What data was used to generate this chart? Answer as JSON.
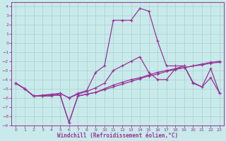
{
  "xlabel": "Windchill (Refroidissement éolien,°C)",
  "background_color": "#c8eaea",
  "grid_color": "#aacfcf",
  "line_color": "#993399",
  "spine_color": "#993399",
  "xlim": [
    -0.5,
    23.5
  ],
  "ylim": [
    -9.0,
    4.5
  ],
  "xticks": [
    0,
    1,
    2,
    3,
    4,
    5,
    6,
    7,
    8,
    9,
    10,
    11,
    12,
    13,
    14,
    15,
    16,
    17,
    18,
    19,
    20,
    21,
    22,
    23
  ],
  "yticks": [
    4,
    3,
    2,
    1,
    0,
    -1,
    -2,
    -3,
    -4,
    -5,
    -6,
    -7,
    -8,
    -9
  ],
  "s1_x": [
    0,
    1,
    2,
    3,
    4,
    5,
    6,
    7,
    8,
    9,
    10,
    11,
    12,
    13,
    14,
    15,
    16,
    17,
    18,
    19,
    20,
    21,
    22,
    23
  ],
  "s1_y": [
    -4.4,
    -5.0,
    -5.8,
    -5.8,
    -5.7,
    -5.7,
    -8.7,
    -5.8,
    -5.6,
    -5.4,
    -5.1,
    -4.8,
    -4.5,
    -4.2,
    -3.9,
    -3.6,
    -3.4,
    -3.1,
    -2.9,
    -2.7,
    -2.5,
    -2.4,
    -2.2,
    -2.1
  ],
  "s2_x": [
    0,
    1,
    2,
    3,
    4,
    5,
    6,
    7,
    8,
    9,
    10,
    11,
    12,
    13,
    14,
    15,
    16,
    17,
    18,
    19,
    20,
    21,
    22,
    23
  ],
  "s2_y": [
    -4.4,
    -5.0,
    -5.8,
    -5.8,
    -5.7,
    -5.7,
    -8.7,
    -5.8,
    -5.6,
    -5.4,
    -5.0,
    -4.6,
    -4.3,
    -4.0,
    -3.8,
    -3.5,
    -3.2,
    -3.0,
    -2.8,
    -2.7,
    -2.5,
    -2.3,
    -2.1,
    -2.0
  ],
  "s3_x": [
    0,
    1,
    2,
    3,
    4,
    5,
    6,
    7,
    8,
    9,
    10,
    11,
    12,
    13,
    14,
    15,
    16,
    17,
    18,
    19,
    20,
    21,
    22,
    23
  ],
  "s3_y": [
    -4.4,
    -5.0,
    -5.8,
    -5.7,
    -5.6,
    -5.5,
    -6.0,
    -5.6,
    -5.3,
    -4.9,
    -4.4,
    -3.0,
    -2.5,
    -2.0,
    -1.5,
    -3.2,
    -4.0,
    -4.0,
    -2.8,
    -2.5,
    -4.4,
    -4.8,
    -3.8,
    -5.5
  ],
  "s4_x": [
    0,
    1,
    2,
    3,
    4,
    5,
    6,
    7,
    8,
    9,
    10,
    11,
    12,
    13,
    14,
    15,
    16,
    17,
    18,
    19,
    20,
    21,
    22,
    23
  ],
  "s4_y": [
    -4.4,
    -5.0,
    -5.8,
    -5.8,
    -5.8,
    -5.5,
    -6.0,
    -5.5,
    -5.2,
    -3.2,
    -2.5,
    2.5,
    2.5,
    2.5,
    3.8,
    3.5,
    0.2,
    -2.5,
    -2.5,
    -2.5,
    -4.3,
    -4.8,
    -2.8,
    -5.5
  ]
}
